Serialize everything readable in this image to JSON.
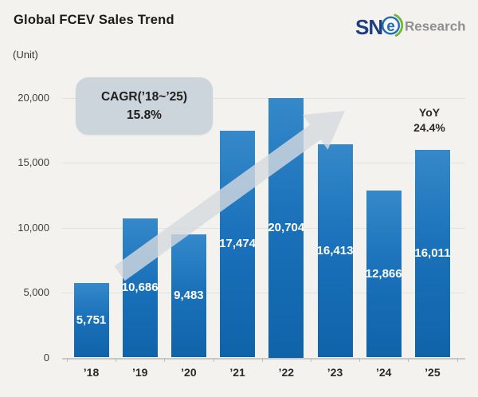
{
  "header": {
    "title": "Global FCEV Sales Trend",
    "unit_label": "(Unit)",
    "logo": {
      "sn": "SN",
      "e": "e",
      "research": "Research",
      "navy": "#1e3f7d",
      "blue": "#1f6db6",
      "green": "#72b637",
      "gray": "#8e8f91"
    }
  },
  "chart_data": {
    "type": "bar",
    "title": "Global FCEV Sales Trend",
    "unit": "(Unit)",
    "categories": [
      "’18",
      "’19",
      "’20",
      "’21",
      "’22",
      "’23",
      "’24",
      "’25"
    ],
    "values": [
      5751,
      10686,
      9483,
      17474,
      20704,
      16413,
      12866,
      16011
    ],
    "value_labels": [
      "5,751",
      "10,686",
      "9,483",
      "17,474",
      "20,704",
      "16,413",
      "12,866",
      "16,011"
    ],
    "ylim": [
      0,
      20000
    ],
    "yticks": [
      20000,
      15000,
      10000,
      5000,
      0
    ],
    "ytick_labels": [
      "20,000",
      "15,000",
      "10,000",
      "5,000",
      "0"
    ],
    "grid": true,
    "legend_position": "none",
    "bar_color_top": "#3589ca",
    "bar_color_bottom": "#0f63a9",
    "bar_label_color": "#ffffff",
    "annotations": {
      "cagr": {
        "line1": "CAGR(’18~’25)",
        "line2": "15.8%",
        "box_color": "#cbd5db"
      },
      "yoy": {
        "line1": "YoY",
        "line2": "24.4%"
      },
      "trend_arrow": {
        "direction": "up-right",
        "color": "#d6dade"
      }
    }
  }
}
